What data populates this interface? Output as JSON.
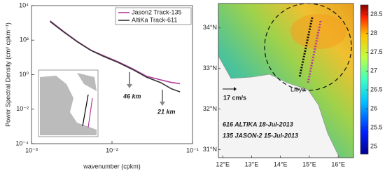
{
  "chart_data": [
    {
      "type": "line",
      "log_x": true,
      "log_y": true,
      "x_label": "wavenumber (cpkm)",
      "y_label": "Power Spectral Density (cm² cpkm⁻¹)",
      "xlim": [
        0.001,
        0.1
      ],
      "ylim": [
        0.0001,
        10000
      ],
      "xticks": [
        {
          "value": 0.001,
          "label": "10⁻³"
        },
        {
          "value": 0.01,
          "label": "10⁻²"
        },
        {
          "value": 0.1,
          "label": "10⁻¹"
        }
      ],
      "yticks": [
        {
          "value": 0.0001,
          "label": "10⁻⁴"
        },
        {
          "value": 0.01,
          "label": "10⁻²"
        },
        {
          "value": 1,
          "label": "10⁰"
        },
        {
          "value": 100,
          "label": "10²"
        },
        {
          "value": 10000,
          "label": "10⁴"
        }
      ],
      "x": [
        0.0017,
        0.0025,
        0.0037,
        0.0055,
        0.008,
        0.012,
        0.018,
        0.027,
        0.04,
        0.055,
        0.07
      ],
      "series": [
        {
          "name": "Jason2 Track-135",
          "color": "#b03c9c",
          "values": [
            1300,
            320,
            85,
            26,
            12,
            5.5,
            2.2,
            0.8,
            0.5,
            0.35,
            0.3
          ]
        },
        {
          "name": "AltiKa   Track-611",
          "color": "#333333",
          "values": [
            1200,
            300,
            80,
            25,
            11,
            5,
            2,
            0.7,
            0.35,
            0.15,
            0.1
          ]
        }
      ],
      "annotations": [
        {
          "text": "46 km",
          "color": "#b03c9c"
        },
        {
          "text": "21 km",
          "color": "#333333"
        }
      ],
      "legend": "upper right"
    },
    {
      "type": "map",
      "colormap": "jet",
      "xlim": [
        11.85,
        16.53
      ],
      "ylim": [
        30.8,
        34.6
      ],
      "xticks": [
        {
          "value": 12,
          "label": "12°E"
        },
        {
          "value": 13,
          "label": "13°E"
        },
        {
          "value": 14,
          "label": "14°E"
        },
        {
          "value": 15,
          "label": "15°E"
        },
        {
          "value": 16,
          "label": "16°E"
        }
      ],
      "yticks": [
        {
          "value": 31,
          "label": "31°N"
        },
        {
          "value": 32,
          "label": "32°N"
        },
        {
          "value": 33,
          "label": "33°N"
        },
        {
          "value": 34,
          "label": "34°N"
        }
      ],
      "clim": [
        24.8,
        28.75
      ],
      "cticks": [
        25,
        25.5,
        26,
        26.5,
        27,
        27.5,
        28,
        28.5
      ],
      "annotations": [
        {
          "text": "17 cm/s",
          "color": "#111111"
        },
        {
          "text": "Libya",
          "color": "#555555"
        },
        {
          "text": "616 ALTIKA 18-Jul-2013",
          "color": "#111111"
        },
        {
          "text": "135 JASON-2 15-Jul-2013",
          "color": "#b03c9c"
        }
      ]
    }
  ]
}
